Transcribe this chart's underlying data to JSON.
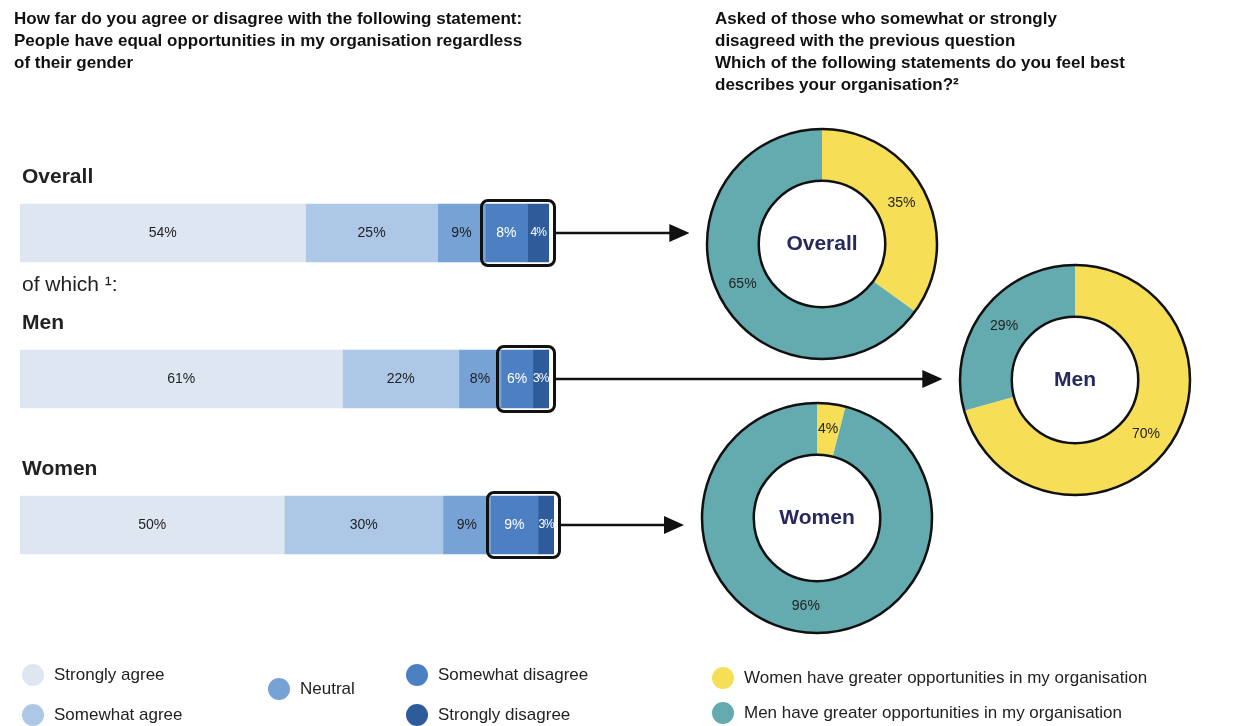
{
  "chart_data": [
    {
      "type": "bar",
      "orientation": "horizontal",
      "stacked": true,
      "title": "How far do you agree or disagree with the following statement: People have equal opportunities in my organisation regardless of their gender",
      "categories": [
        "Overall",
        "Men",
        "Women"
      ],
      "xlim": [
        0,
        101
      ],
      "tick_labels": false,
      "grid": false,
      "legend": "bottom",
      "annotations": [
        "of which ¹:"
      ],
      "series": [
        {
          "name": "Strongly agree",
          "color": "#dde6f1",
          "values": [
            54,
            61,
            50
          ],
          "value_labels": [
            "54%",
            "61%",
            "50%"
          ]
        },
        {
          "name": "Somewhat agree",
          "color": "#adc8e6",
          "values": [
            25,
            22,
            30
          ],
          "value_labels": [
            "25%",
            "22%",
            "30%"
          ]
        },
        {
          "name": "Neutral",
          "color": "#76a2d6",
          "values": [
            9,
            8,
            9
          ],
          "value_labels": [
            "9%",
            "8%",
            "9%"
          ]
        },
        {
          "name": "Somewhat disagree",
          "color": "#4d80c2",
          "values": [
            8,
            6,
            9
          ],
          "value_labels": [
            "8%",
            "6%",
            "9%"
          ]
        },
        {
          "name": "Strongly disagree",
          "color": "#2e5c9b",
          "values": [
            4,
            3,
            3
          ],
          "value_labels": [
            "4%",
            "3%",
            "3%"
          ]
        }
      ]
    },
    {
      "type": "donut",
      "title": "Asked of those who somewhat or strongly disagreed with the previous question",
      "subtitle": "Which of the following statements do you feel best describes your organisation?²",
      "categories": [
        "Women have greater opportunities in my organisation",
        "Men have greater opportunities in my organisation"
      ],
      "values": [
        35,
        65
      ],
      "colors": [
        "#f6df56",
        "#64abaf"
      ],
      "value_labels": [
        "35%",
        "65%"
      ],
      "annotations": [
        "Overall"
      ],
      "legend": "bottom"
    },
    {
      "type": "donut",
      "categories": [
        null,
        null
      ],
      "values": [
        70,
        29
      ],
      "colors": [
        "#f6df56",
        "#64abaf"
      ],
      "value_labels": [
        "70%",
        "29%"
      ],
      "annotations": [
        "Men"
      ]
    },
    {
      "type": "donut",
      "categories": [
        null,
        null
      ],
      "values": [
        4,
        96
      ],
      "colors": [
        "#f6df56",
        "#64abaf"
      ],
      "value_labels": [
        "4%",
        "96%"
      ],
      "annotations": [
        "Women"
      ]
    }
  ]
}
